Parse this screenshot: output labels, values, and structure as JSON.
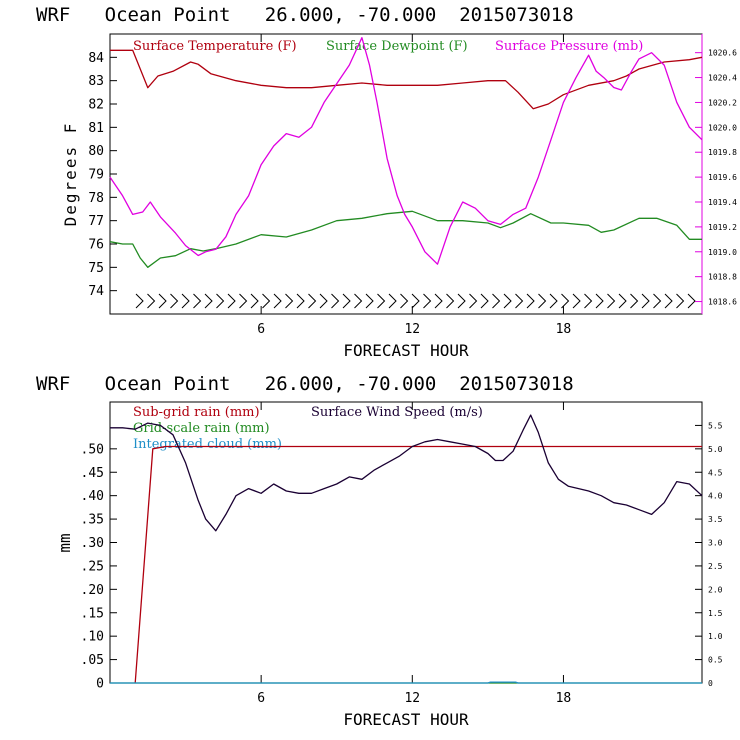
{
  "colors": {
    "temp": "#b0000f",
    "dew": "#228b22",
    "press": "#e000e0",
    "wind": "#1a0033",
    "subgrid": "#b0000f",
    "gridscale": "#228b22",
    "cloud": "#1f8fc8"
  },
  "chart_data": [
    {
      "type": "line",
      "title": "WRF   Ocean Point   26.000, -70.000  2015073018",
      "xlabel": "FORECAST HOUR",
      "ylabel": "Degrees F",
      "xlim": [
        0,
        23.5
      ],
      "ylim": [
        73,
        85
      ],
      "y2lim": [
        1018.5,
        1020.75
      ],
      "xticks": [
        "6",
        "12",
        "18"
      ],
      "yticks": [
        "74",
        "75",
        "76",
        "77",
        "78",
        "79",
        "80",
        "81",
        "82",
        "83",
        "84"
      ],
      "y2ticks": [
        "1018.6",
        "1018.8",
        "1019.0",
        "1019.2",
        "1019.4",
        "1019.6",
        "1019.8",
        "1020.0",
        "1020.2",
        "1020.4",
        "1020.6"
      ],
      "series": [
        {
          "name": "Surface Temperature (F)",
          "axis": "left",
          "color_key": "temp",
          "x": [
            0,
            0.9,
            1.5,
            1.9,
            2.5,
            3.2,
            3.5,
            4,
            5,
            6,
            7,
            8,
            9,
            10,
            11,
            12,
            13,
            14,
            15,
            15.7,
            16.2,
            16.8,
            17.4,
            18,
            19,
            20,
            20.5,
            21,
            22,
            23,
            23.5
          ],
          "y": [
            84.3,
            84.3,
            82.7,
            83.2,
            83.4,
            83.8,
            83.7,
            83.3,
            83.0,
            82.8,
            82.7,
            82.7,
            82.8,
            82.9,
            82.8,
            82.8,
            82.8,
            82.9,
            83.0,
            83.0,
            82.5,
            81.8,
            82.0,
            82.4,
            82.8,
            83.0,
            83.2,
            83.5,
            83.8,
            83.9,
            84.0
          ]
        },
        {
          "name": "Surface Dewpoint (F)",
          "axis": "left",
          "color_key": "dew",
          "x": [
            0,
            0.5,
            0.9,
            1.2,
            1.5,
            2,
            2.6,
            3.2,
            3.7,
            4.2,
            5,
            6,
            7,
            8,
            9,
            10,
            11,
            12,
            13,
            14,
            15,
            15.5,
            16,
            16.7,
            17.5,
            18,
            19,
            19.5,
            20,
            21,
            21.7,
            22.5,
            23,
            23.5
          ],
          "y": [
            76.1,
            76.0,
            76.0,
            75.4,
            75.0,
            75.4,
            75.5,
            75.8,
            75.7,
            75.8,
            76.0,
            76.4,
            76.3,
            76.6,
            77.0,
            77.1,
            77.3,
            77.4,
            77.0,
            77.0,
            76.9,
            76.7,
            76.9,
            77.3,
            76.9,
            76.9,
            76.8,
            76.5,
            76.6,
            77.1,
            77.1,
            76.8,
            76.2,
            76.2
          ]
        },
        {
          "name": "Surface Pressure (mb)",
          "axis": "right",
          "color_key": "press",
          "x": [
            0,
            0.5,
            0.9,
            1.3,
            1.6,
            2,
            2.6,
            3,
            3.5,
            3.8,
            4.2,
            4.6,
            5,
            5.5,
            6,
            6.5,
            7,
            7.5,
            8,
            8.5,
            9,
            9.5,
            10,
            10.3,
            10.6,
            11,
            11.4,
            11.7,
            12,
            12.5,
            13,
            13.5,
            14,
            14.5,
            15,
            15.5,
            16,
            16.5,
            17,
            17.5,
            18,
            18.5,
            19,
            19.3,
            19.6,
            20,
            20.3,
            20.7,
            21,
            21.5,
            22,
            22.5,
            23,
            23.5
          ],
          "y": [
            1019.6,
            1019.45,
            1019.3,
            1019.32,
            1019.4,
            1019.28,
            1019.15,
            1019.05,
            1018.97,
            1019.0,
            1019.02,
            1019.12,
            1019.3,
            1019.45,
            1019.7,
            1019.85,
            1019.95,
            1019.92,
            1020.0,
            1020.2,
            1020.35,
            1020.5,
            1020.72,
            1020.5,
            1020.2,
            1019.75,
            1019.45,
            1019.3,
            1019.2,
            1019.0,
            1018.9,
            1019.2,
            1019.4,
            1019.35,
            1019.25,
            1019.22,
            1019.3,
            1019.35,
            1019.6,
            1019.9,
            1020.2,
            1020.4,
            1020.58,
            1020.45,
            1020.4,
            1020.32,
            1020.3,
            1020.45,
            1020.55,
            1020.6,
            1020.5,
            1020.2,
            1020.0,
            1019.9
          ]
        }
      ]
    },
    {
      "type": "line",
      "title": "WRF   Ocean Point   26.000, -70.000  2015073018",
      "xlabel": "FORECAST HOUR",
      "ylabel": "mm",
      "xlim": [
        0,
        23.5
      ],
      "ylim": [
        0,
        0.6
      ],
      "y2lim": [
        0,
        6.0
      ],
      "xticks": [
        "6",
        "12",
        "18"
      ],
      "yticks": [
        "0",
        ".05",
        ".10",
        ".15",
        ".20",
        ".25",
        ".30",
        ".35",
        ".40",
        ".45",
        ".50"
      ],
      "y2ticks": [
        "0",
        "0.5",
        "1.0",
        "1.5",
        "2.0",
        "2.5",
        "3.0",
        "3.5",
        "4.0",
        "4.5",
        "5.0",
        "5.5"
      ],
      "series": [
        {
          "name": "Sub-grid rain (mm)",
          "axis": "left",
          "color_key": "subgrid",
          "x": [
            1.0,
            1.7,
            2.2,
            23.5
          ],
          "y": [
            0,
            0.5,
            0.505,
            0.505
          ]
        },
        {
          "name": "Grid-scale rain (mm)",
          "axis": "left",
          "color_key": "gridscale",
          "x": [
            0,
            23.5
          ],
          "y": [
            0,
            0
          ]
        },
        {
          "name": "Integrated cloud (mm)",
          "axis": "left",
          "color_key": "cloud",
          "x": [
            0,
            15.0,
            15.1,
            16.1,
            16.2,
            23.5
          ],
          "y": [
            0,
            0,
            0.002,
            0.002,
            0,
            0
          ]
        },
        {
          "name": "Surface Wind Speed (m/s)",
          "axis": "right",
          "color_key": "wind",
          "x": [
            0,
            0.5,
            1,
            1.5,
            2,
            2.5,
            3,
            3.5,
            3.8,
            4.2,
            4.6,
            5,
            5.5,
            6,
            6.5,
            7,
            7.5,
            8,
            8.5,
            9,
            9.5,
            10,
            10.5,
            11,
            11.5,
            12,
            12.5,
            13,
            13.5,
            14,
            14.5,
            15,
            15.3,
            15.6,
            16,
            16.4,
            16.7,
            17,
            17.4,
            17.8,
            18.2,
            18.6,
            19,
            19.5,
            20,
            20.5,
            21,
            21.5,
            22,
            22.5,
            23,
            23.5
          ],
          "y": [
            5.45,
            5.45,
            5.42,
            5.55,
            5.5,
            5.3,
            4.7,
            3.9,
            3.5,
            3.25,
            3.6,
            4.0,
            4.15,
            4.05,
            4.25,
            4.1,
            4.05,
            4.05,
            4.15,
            4.25,
            4.4,
            4.35,
            4.55,
            4.7,
            4.85,
            5.05,
            5.15,
            5.2,
            5.15,
            5.1,
            5.05,
            4.9,
            4.75,
            4.75,
            4.95,
            5.4,
            5.72,
            5.35,
            4.7,
            4.35,
            4.2,
            4.15,
            4.1,
            4.0,
            3.85,
            3.8,
            3.7,
            3.6,
            3.85,
            4.3,
            4.25,
            4.0
          ]
        }
      ]
    }
  ]
}
